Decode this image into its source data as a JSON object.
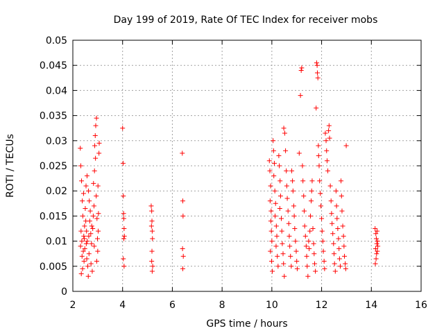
{
  "chart_data": {
    "type": "scatter",
    "title": "Day 199 of 2019, Rate Of TEC Index for receiver mobs",
    "xlabel": "GPS time / hours",
    "ylabel": "ROTI / TECUs",
    "xlim": [
      2,
      16
    ],
    "ylim": [
      0,
      0.05
    ],
    "xticks": [
      2,
      4,
      6,
      8,
      10,
      12,
      14,
      16
    ],
    "yticks": [
      0,
      0.005,
      0.01,
      0.015,
      0.02,
      0.025,
      0.03,
      0.035,
      0.04,
      0.045,
      0.05
    ],
    "xtick_labels": [
      "2",
      "4",
      "6",
      "8",
      "10",
      "12",
      "14",
      "16"
    ],
    "ytick_labels": [
      "0",
      "0.005",
      "0.01",
      "0.015",
      "0.02",
      "0.025",
      "0.03",
      "0.035",
      "0.04",
      "0.045",
      "0.05"
    ],
    "grid": true,
    "marker": "plus",
    "color": "#ff0000",
    "series": [
      {
        "name": "ROTI",
        "points": [
          [
            2.3,
            0.0285
          ],
          [
            2.32,
            0.025
          ],
          [
            2.35,
            0.022
          ],
          [
            2.38,
            0.018
          ],
          [
            2.4,
            0.015
          ],
          [
            2.33,
            0.012
          ],
          [
            2.36,
            0.01
          ],
          [
            2.42,
            0.008
          ],
          [
            2.45,
            0.006
          ],
          [
            2.39,
            0.0045
          ],
          [
            2.34,
            0.0035
          ],
          [
            2.44,
            0.011
          ],
          [
            2.47,
            0.013
          ],
          [
            2.31,
            0.009
          ],
          [
            2.37,
            0.007
          ],
          [
            2.43,
            0.0195
          ],
          [
            2.5,
            0.0165
          ],
          [
            2.52,
            0.014
          ],
          [
            2.55,
            0.012
          ],
          [
            2.58,
            0.01
          ],
          [
            2.48,
            0.0085
          ],
          [
            2.56,
            0.0065
          ],
          [
            2.6,
            0.005
          ],
          [
            2.62,
            0.003
          ],
          [
            2.53,
            0.021
          ],
          [
            2.57,
            0.023
          ],
          [
            2.63,
            0.02
          ],
          [
            2.66,
            0.018
          ],
          [
            2.7,
            0.016
          ],
          [
            2.68,
            0.014
          ],
          [
            2.72,
            0.0115
          ],
          [
            2.75,
            0.0095
          ],
          [
            2.65,
            0.0075
          ],
          [
            2.73,
            0.0055
          ],
          [
            2.78,
            0.004
          ],
          [
            2.8,
            0.0125
          ],
          [
            2.82,
            0.015
          ],
          [
            2.85,
            0.017
          ],
          [
            2.83,
            0.0215
          ],
          [
            2.87,
            0.024
          ],
          [
            2.88,
            0.029
          ],
          [
            2.9,
            0.031
          ],
          [
            2.92,
            0.033
          ],
          [
            2.95,
            0.0345
          ],
          [
            2.91,
            0.0265
          ],
          [
            2.94,
            0.019
          ],
          [
            2.97,
            0.0145
          ],
          [
            2.99,
            0.0105
          ],
          [
            3.0,
            0.008
          ],
          [
            2.96,
            0.006
          ],
          [
            3.02,
            0.012
          ],
          [
            3.03,
            0.0155
          ],
          [
            3.05,
            0.0275
          ],
          [
            3.06,
            0.0295
          ],
          [
            3.01,
            0.021
          ],
          [
            2.76,
            0.013
          ],
          [
            2.64,
            0.011
          ],
          [
            2.54,
            0.0095
          ],
          [
            2.46,
            0.0105
          ],
          [
            2.86,
            0.009
          ],
          [
            4.0,
            0.0325
          ],
          [
            4.02,
            0.0255
          ],
          [
            4.03,
            0.019
          ],
          [
            4.04,
            0.0155
          ],
          [
            4.05,
            0.0145
          ],
          [
            4.06,
            0.0125
          ],
          [
            4.07,
            0.011
          ],
          [
            4.05,
            0.0105
          ],
          [
            4.03,
            0.0065
          ],
          [
            4.06,
            0.005
          ],
          [
            5.15,
            0.017
          ],
          [
            5.17,
            0.016
          ],
          [
            5.18,
            0.014
          ],
          [
            5.16,
            0.013
          ],
          [
            5.19,
            0.012
          ],
          [
            5.2,
            0.0105
          ],
          [
            5.18,
            0.008
          ],
          [
            5.17,
            0.006
          ],
          [
            5.21,
            0.005
          ],
          [
            5.19,
            0.004
          ],
          [
            6.4,
            0.0275
          ],
          [
            6.42,
            0.018
          ],
          [
            6.43,
            0.015
          ],
          [
            6.41,
            0.0085
          ],
          [
            6.44,
            0.007
          ],
          [
            6.42,
            0.0045
          ],
          [
            9.9,
            0.026
          ],
          [
            9.92,
            0.024
          ],
          [
            9.95,
            0.021
          ],
          [
            9.93,
            0.018
          ],
          [
            9.97,
            0.016
          ],
          [
            9.96,
            0.014
          ],
          [
            9.98,
            0.012
          ],
          [
            10.0,
            0.01
          ],
          [
            9.94,
            0.008
          ],
          [
            9.99,
            0.006
          ],
          [
            10.02,
            0.004
          ],
          [
            10.05,
            0.03
          ],
          [
            10.07,
            0.028
          ],
          [
            10.1,
            0.0255
          ],
          [
            10.08,
            0.023
          ],
          [
            10.12,
            0.02
          ],
          [
            10.15,
            0.0175
          ],
          [
            10.13,
            0.015
          ],
          [
            10.18,
            0.013
          ],
          [
            10.2,
            0.011
          ],
          [
            10.17,
            0.009
          ],
          [
            10.22,
            0.007
          ],
          [
            10.25,
            0.005
          ],
          [
            10.28,
            0.027
          ],
          [
            10.3,
            0.025
          ],
          [
            10.33,
            0.022
          ],
          [
            10.35,
            0.019
          ],
          [
            10.32,
            0.0165
          ],
          [
            10.38,
            0.0145
          ],
          [
            10.4,
            0.012
          ],
          [
            10.42,
            0.0095
          ],
          [
            10.45,
            0.0075
          ],
          [
            10.47,
            0.0055
          ],
          [
            10.5,
            0.003
          ],
          [
            10.48,
            0.0325
          ],
          [
            10.52,
            0.0315
          ],
          [
            10.55,
            0.028
          ],
          [
            10.58,
            0.024
          ],
          [
            10.6,
            0.021
          ],
          [
            10.62,
            0.0185
          ],
          [
            10.65,
            0.016
          ],
          [
            10.68,
            0.0135
          ],
          [
            10.7,
            0.011
          ],
          [
            10.72,
            0.009
          ],
          [
            10.75,
            0.007
          ],
          [
            10.78,
            0.005
          ],
          [
            10.8,
            0.024
          ],
          [
            10.83,
            0.022
          ],
          [
            10.85,
            0.02
          ],
          [
            10.88,
            0.017
          ],
          [
            10.9,
            0.015
          ],
          [
            10.92,
            0.0125
          ],
          [
            10.95,
            0.01
          ],
          [
            10.98,
            0.008
          ],
          [
            11.0,
            0.006
          ],
          [
            11.02,
            0.0045
          ],
          [
            11.1,
            0.0275
          ],
          [
            11.15,
            0.039
          ],
          [
            11.18,
            0.044
          ],
          [
            11.2,
            0.0445
          ],
          [
            11.23,
            0.025
          ],
          [
            11.25,
            0.022
          ],
          [
            11.28,
            0.019
          ],
          [
            11.3,
            0.016
          ],
          [
            11.32,
            0.013
          ],
          [
            11.35,
            0.011
          ],
          [
            11.38,
            0.009
          ],
          [
            11.4,
            0.007
          ],
          [
            11.42,
            0.005
          ],
          [
            11.45,
            0.003
          ],
          [
            11.48,
            0.01
          ],
          [
            11.5,
            0.0085
          ],
          [
            11.53,
            0.012
          ],
          [
            11.55,
            0.015
          ],
          [
            11.58,
            0.018
          ],
          [
            11.6,
            0.02
          ],
          [
            11.62,
            0.022
          ],
          [
            11.65,
            0.0125
          ],
          [
            11.68,
            0.0095
          ],
          [
            11.7,
            0.0075
          ],
          [
            11.72,
            0.0055
          ],
          [
            11.75,
            0.004
          ],
          [
            11.78,
            0.0365
          ],
          [
            11.8,
            0.0455
          ],
          [
            11.82,
            0.045
          ],
          [
            11.83,
            0.0435
          ],
          [
            11.85,
            0.0425
          ],
          [
            11.87,
            0.029
          ],
          [
            11.88,
            0.027
          ],
          [
            11.9,
            0.025
          ],
          [
            11.92,
            0.022
          ],
          [
            11.95,
            0.0195
          ],
          [
            11.97,
            0.017
          ],
          [
            12.0,
            0.0145
          ],
          [
            12.02,
            0.012
          ],
          [
            12.05,
            0.01
          ],
          [
            12.07,
            0.008
          ],
          [
            12.1,
            0.006
          ],
          [
            12.12,
            0.0045
          ],
          [
            12.15,
            0.0315
          ],
          [
            12.18,
            0.03
          ],
          [
            12.2,
            0.028
          ],
          [
            12.22,
            0.026
          ],
          [
            12.25,
            0.024
          ],
          [
            12.28,
            0.032
          ],
          [
            12.3,
            0.033
          ],
          [
            12.32,
            0.0305
          ],
          [
            12.35,
            0.021
          ],
          [
            12.38,
            0.018
          ],
          [
            12.4,
            0.0155
          ],
          [
            12.42,
            0.0135
          ],
          [
            12.45,
            0.0115
          ],
          [
            12.48,
            0.0095
          ],
          [
            12.5,
            0.0075
          ],
          [
            12.52,
            0.0055
          ],
          [
            12.55,
            0.004
          ],
          [
            12.58,
            0.02
          ],
          [
            12.6,
            0.017
          ],
          [
            12.62,
            0.0145
          ],
          [
            12.65,
            0.0125
          ],
          [
            12.68,
            0.0105
          ],
          [
            12.7,
            0.0085
          ],
          [
            12.72,
            0.0065
          ],
          [
            12.75,
            0.005
          ],
          [
            12.78,
            0.022
          ],
          [
            12.8,
            0.019
          ],
          [
            12.82,
            0.016
          ],
          [
            12.85,
            0.013
          ],
          [
            12.88,
            0.011
          ],
          [
            12.9,
            0.009
          ],
          [
            12.92,
            0.007
          ],
          [
            12.95,
            0.0055
          ],
          [
            12.97,
            0.0045
          ],
          [
            12.99,
            0.029
          ],
          [
            14.15,
            0.0125
          ],
          [
            14.18,
            0.0115
          ],
          [
            14.2,
            0.0105
          ],
          [
            14.22,
            0.0095
          ],
          [
            14.17,
            0.0085
          ],
          [
            14.21,
            0.0075
          ],
          [
            14.19,
            0.0065
          ],
          [
            14.16,
            0.0055
          ],
          [
            14.23,
            0.012
          ],
          [
            14.25,
            0.01
          ],
          [
            14.24,
            0.008
          ],
          [
            14.26,
            0.009
          ]
        ]
      }
    ]
  }
}
